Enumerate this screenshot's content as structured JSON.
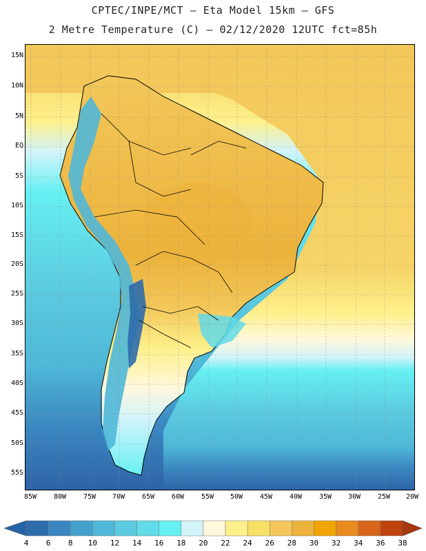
{
  "title_line1": "CPTEC/INPE/MCT –  Eta Model 15km – GFS",
  "title_line2": "2 Metre Temperature (C) – 02/12/2020 12UTC fct=85h",
  "lat_labels": [
    "15N",
    "10N",
    "5N",
    "EQ",
    "5S",
    "10S",
    "15S",
    "20S",
    "25S",
    "30S",
    "35S",
    "40S",
    "45S",
    "50S",
    "55S"
  ],
  "lon_labels": [
    "85W",
    "80W",
    "75W",
    "70W",
    "65W",
    "60W",
    "55W",
    "50W",
    "45W",
    "40W",
    "35W",
    "30W",
    "25W",
    "20W"
  ],
  "colorbar": {
    "levels": [
      "4",
      "6",
      "8",
      "10",
      "12",
      "14",
      "16",
      "18",
      "20",
      "22",
      "24",
      "26",
      "28",
      "30",
      "32",
      "34",
      "36",
      "38"
    ],
    "colors": [
      "#2d6bab",
      "#3a86c0",
      "#44a0cc",
      "#4fb8d8",
      "#5ccbe0",
      "#62dbe8",
      "#66f0f2",
      "#d2f4fa",
      "#fff8dc",
      "#fef08a",
      "#f8e066",
      "#f3c75a",
      "#ecb33c",
      "#f0a500",
      "#e88a1e",
      "#d8651a",
      "#c0420e"
    ],
    "low_color": "#2563a7",
    "high_color": "#a8380e"
  },
  "colors": {
    "ocean_cold": "#2f66aa",
    "ocean_cool": "#3a86c0",
    "ocean_mild": "#4fb8d8",
    "ocean_tepid": "#5ccbe0",
    "ocean_warm": "#66f0f2",
    "land_hot": "#ecb33c",
    "land_warm": "#f3c75a",
    "atlantic_trop": "#f3c75a",
    "atlantic_sub": "#fef08a"
  }
}
